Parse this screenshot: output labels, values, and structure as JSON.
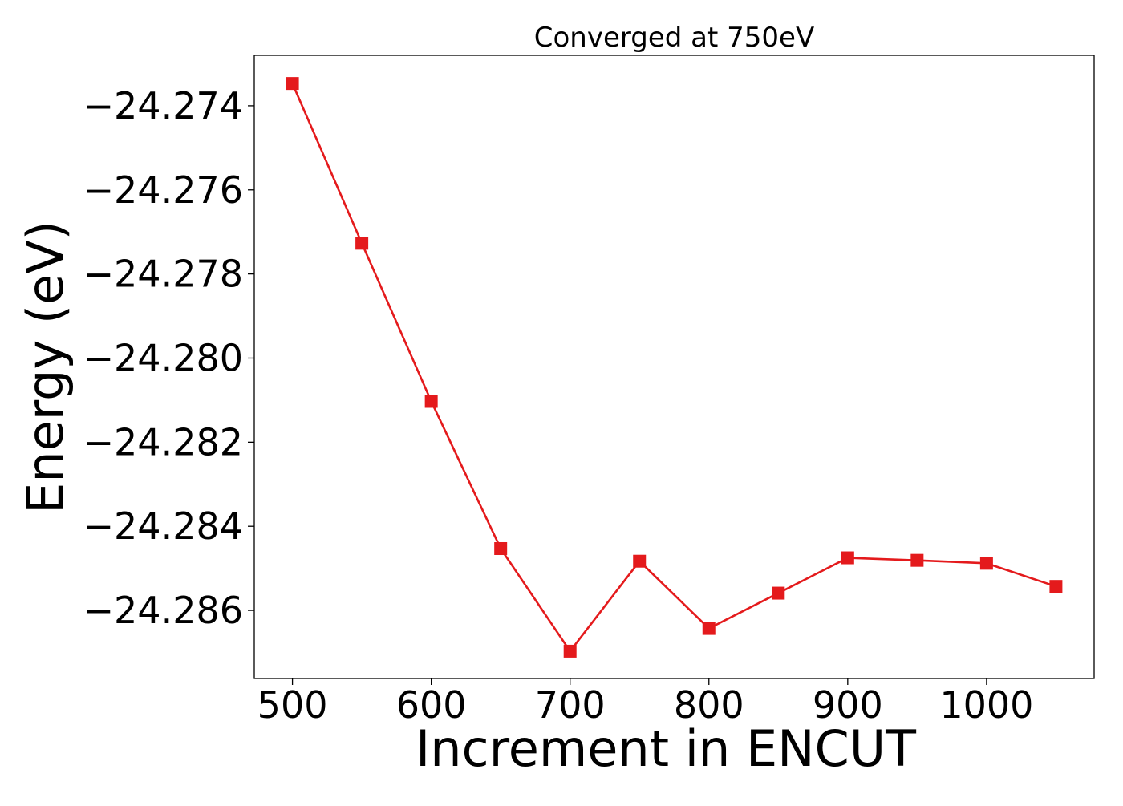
{
  "chart_data": {
    "type": "line",
    "title": "Converged at 750eV",
    "xlabel": "Increment in ENCUT",
    "ylabel": "Energy (eV)",
    "x": [
      500,
      550,
      600,
      650,
      700,
      750,
      800,
      850,
      900,
      950,
      1000,
      1050
    ],
    "series": [
      {
        "values": [
          -24.27347,
          -24.27727,
          -24.28103,
          -24.28453,
          -24.28697,
          -24.28483,
          -24.28643,
          -24.28559,
          -24.28475,
          -24.28481,
          -24.28488,
          -24.28543
        ],
        "color": "#e41a1c",
        "marker": "square"
      }
    ],
    "xticks": [
      500,
      600,
      700,
      800,
      900,
      1000
    ],
    "xtick_labels": [
      "500",
      "600",
      "700",
      "800",
      "900",
      "1000"
    ],
    "yticks": [
      -24.274,
      -24.276,
      -24.278,
      -24.28,
      -24.282,
      -24.284,
      -24.286
    ],
    "ytick_labels": [
      "−24.274",
      "−24.276",
      "−24.278",
      "−24.280",
      "−24.282",
      "−24.284",
      "−24.286"
    ],
    "xlim": [
      472.5,
      1077.5
    ],
    "ylim": [
      -24.28762,
      -24.2728
    ],
    "grid": false,
    "legend": false
  }
}
